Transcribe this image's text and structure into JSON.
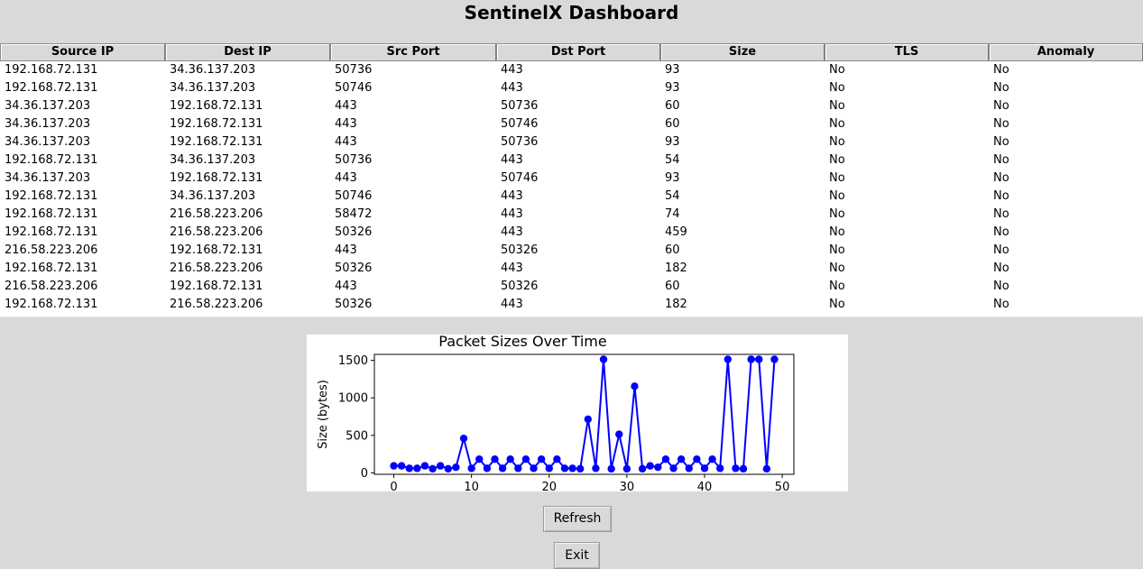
{
  "app": {
    "title": "SentinelX Dashboard"
  },
  "table": {
    "columns": [
      "Source IP",
      "Dest IP",
      "Src Port",
      "Dst Port",
      "Size",
      "TLS",
      "Anomaly"
    ],
    "rows": [
      [
        "192.168.72.131",
        "34.36.137.203",
        "50736",
        "443",
        "93",
        "No",
        "No"
      ],
      [
        "192.168.72.131",
        "34.36.137.203",
        "50746",
        "443",
        "93",
        "No",
        "No"
      ],
      [
        "34.36.137.203",
        "192.168.72.131",
        "443",
        "50736",
        "60",
        "No",
        "No"
      ],
      [
        "34.36.137.203",
        "192.168.72.131",
        "443",
        "50746",
        "60",
        "No",
        "No"
      ],
      [
        "34.36.137.203",
        "192.168.72.131",
        "443",
        "50736",
        "93",
        "No",
        "No"
      ],
      [
        "192.168.72.131",
        "34.36.137.203",
        "50736",
        "443",
        "54",
        "No",
        "No"
      ],
      [
        "34.36.137.203",
        "192.168.72.131",
        "443",
        "50746",
        "93",
        "No",
        "No"
      ],
      [
        "192.168.72.131",
        "34.36.137.203",
        "50746",
        "443",
        "54",
        "No",
        "No"
      ],
      [
        "192.168.72.131",
        "216.58.223.206",
        "58472",
        "443",
        "74",
        "No",
        "No"
      ],
      [
        "192.168.72.131",
        "216.58.223.206",
        "50326",
        "443",
        "459",
        "No",
        "No"
      ],
      [
        "216.58.223.206",
        "192.168.72.131",
        "443",
        "50326",
        "60",
        "No",
        "No"
      ],
      [
        "192.168.72.131",
        "216.58.223.206",
        "50326",
        "443",
        "182",
        "No",
        "No"
      ],
      [
        "216.58.223.206",
        "192.168.72.131",
        "443",
        "50326",
        "60",
        "No",
        "No"
      ],
      [
        "192.168.72.131",
        "216.58.223.206",
        "50326",
        "443",
        "182",
        "No",
        "No"
      ]
    ]
  },
  "chart_data": {
    "type": "line",
    "title": "Packet Sizes Over Time",
    "xlabel": "",
    "ylabel": "Size (bytes)",
    "xlim": [
      -2.5,
      51.5
    ],
    "ylim": [
      -20,
      1580
    ],
    "xticks": [
      0,
      10,
      20,
      30,
      40,
      50
    ],
    "yticks": [
      0,
      500,
      1000,
      1500
    ],
    "color": "#0000ff",
    "marker": "circle",
    "grid": false,
    "x": [
      0,
      1,
      2,
      3,
      4,
      5,
      6,
      7,
      8,
      9,
      10,
      11,
      12,
      13,
      14,
      15,
      16,
      17,
      18,
      19,
      20,
      21,
      22,
      23,
      24,
      25,
      26,
      27,
      28,
      29,
      30,
      31,
      32,
      33,
      34,
      35,
      36,
      37,
      38,
      39,
      40,
      41,
      42,
      43,
      44,
      45,
      46,
      47,
      48,
      49
    ],
    "y": [
      93,
      93,
      60,
      60,
      93,
      54,
      93,
      54,
      74,
      459,
      60,
      182,
      60,
      182,
      60,
      182,
      60,
      182,
      60,
      182,
      60,
      182,
      60,
      60,
      54,
      715,
      60,
      1514,
      54,
      514,
      54,
      1155,
      54,
      93,
      74,
      182,
      60,
      182,
      60,
      182,
      60,
      182,
      60,
      1514,
      60,
      54,
      1514,
      1514,
      54,
      1514
    ]
  },
  "buttons": {
    "refresh": "Refresh",
    "exit": "Exit"
  }
}
